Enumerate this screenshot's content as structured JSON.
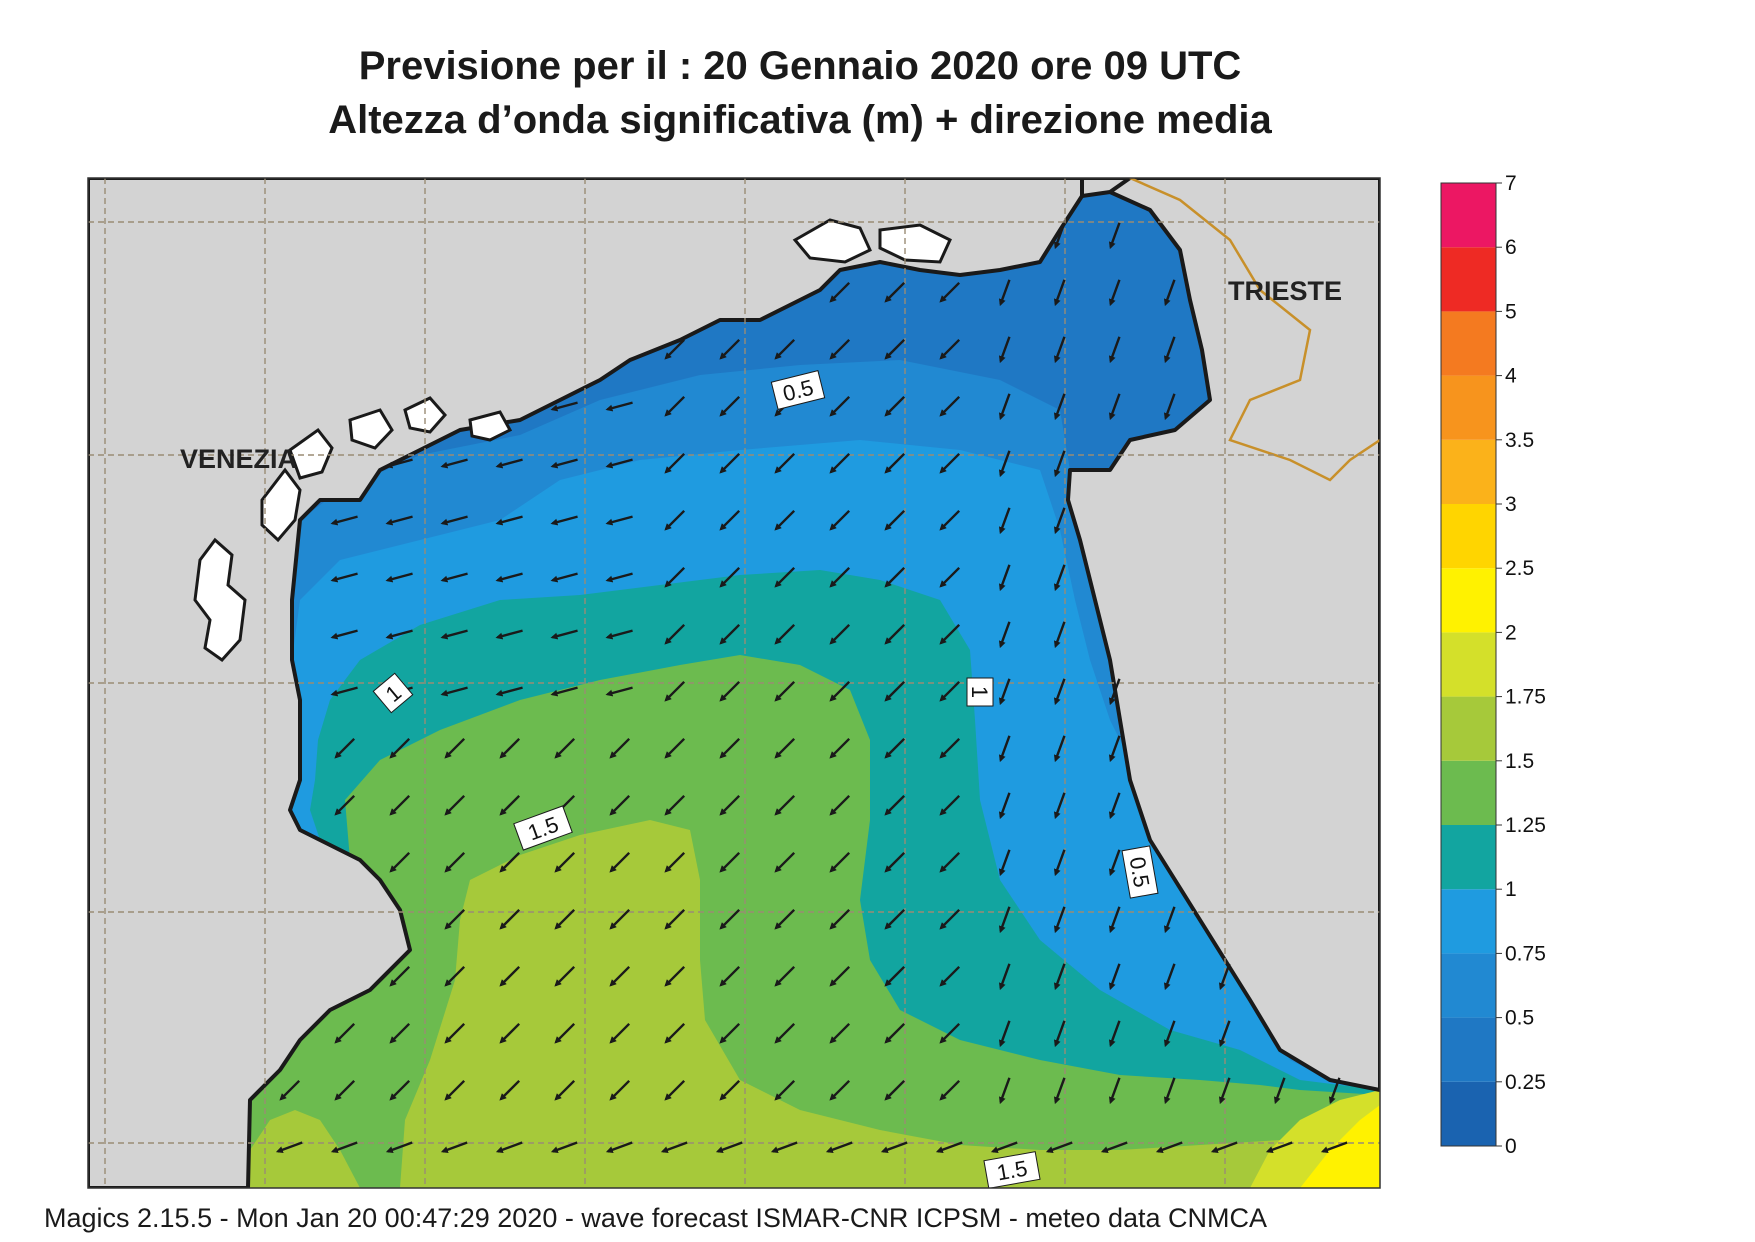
{
  "title": {
    "line1": "Previsione per il  :  20  Gennaio  2020   ore 09 UTC",
    "line2": "Altezza d’onda significativa (m) + direzione media"
  },
  "places": {
    "venezia": "VENEZIA",
    "trieste": "TRIESTE"
  },
  "contour_labels": [
    "0.5",
    "1",
    "1",
    "1.5",
    "0.5",
    "1.5"
  ],
  "colorbar": {
    "ticks": [
      "0",
      "0.25",
      "0.5",
      "0.75",
      "1",
      "1.25",
      "1.5",
      "1.75",
      "2",
      "2.5",
      "3",
      "3.5",
      "4",
      "5",
      "6",
      "7"
    ],
    "colors": [
      "#1a63b0",
      "#1f78c4",
      "#2189d2",
      "#1f9be0",
      "#12a5a0",
      "#6cbb4f",
      "#a6c93a",
      "#d4e02a",
      "#fff200",
      "#ffd500",
      "#fbb21a",
      "#f7941d",
      "#f47a20",
      "#ee2a24",
      "#ec1763"
    ]
  },
  "colors": {
    "land": "#d3d3d3",
    "coast": "#1a1a1a",
    "border": "#c8902a",
    "grid": "#9a8c74"
  },
  "footer": "Magics 2.15.5 - Mon Jan 20 00:47:29 2020 - wave forecast  ISMAR-CNR  ICPSM - meteo data   CNMCA"
}
